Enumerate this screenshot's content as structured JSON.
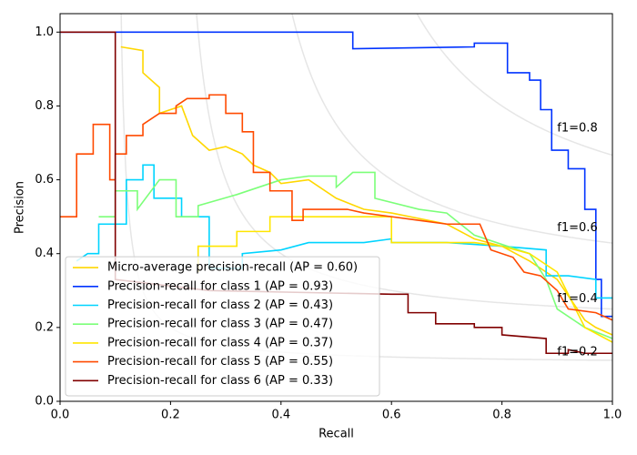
{
  "chart_data": {
    "type": "line",
    "x_label": "Recall",
    "y_label": "Precision",
    "xlim": [
      0,
      1
    ],
    "ylim": [
      0,
      1.05
    ],
    "xticks": [
      {
        "value": 0,
        "label": "0.0"
      },
      {
        "value": 0.2,
        "label": "0.2"
      },
      {
        "value": 0.4,
        "label": "0.4"
      },
      {
        "value": 0.6,
        "label": "0.6"
      },
      {
        "value": 0.8,
        "label": "0.8"
      },
      {
        "value": 1,
        "label": "1.0"
      }
    ],
    "yticks": [
      {
        "value": 0,
        "label": "0.0"
      },
      {
        "value": 0.2,
        "label": "0.2"
      },
      {
        "value": 0.4,
        "label": "0.4"
      },
      {
        "value": 0.6,
        "label": "0.6"
      },
      {
        "value": 0.8,
        "label": "0.8"
      },
      {
        "value": 1,
        "label": "1.0"
      }
    ],
    "legend": "lower left",
    "iso_f1": [
      {
        "value": 0.2,
        "label": "f1=0.2"
      },
      {
        "value": 0.4,
        "label": "f1=0.4"
      },
      {
        "value": 0.6,
        "label": "f1=0.6"
      },
      {
        "value": 0.8,
        "label": "f1=0.8"
      }
    ],
    "series": [
      {
        "name": "Micro-average precision-recall (AP = 0.60)",
        "color": "#ffd700",
        "x": [
          0.11,
          0.15,
          0.15,
          0.18,
          0.18,
          0.22,
          0.24,
          0.27,
          0.3,
          0.33,
          0.35,
          0.38,
          0.4,
          0.45,
          0.5,
          0.55,
          0.6,
          0.7,
          0.75,
          0.8,
          0.85,
          0.9,
          0.95,
          0.97,
          1
        ],
        "values": [
          0.96,
          0.95,
          0.89,
          0.85,
          0.78,
          0.8,
          0.72,
          0.68,
          0.69,
          0.67,
          0.64,
          0.62,
          0.59,
          0.6,
          0.55,
          0.52,
          0.51,
          0.48,
          0.44,
          0.42,
          0.38,
          0.33,
          0.22,
          0.2,
          0.18
        ]
      },
      {
        "name": "Precision-recall for class 1 (AP = 0.93)",
        "color": "#0033ff",
        "x": [
          0,
          0.53,
          0.53,
          0.75,
          0.75,
          0.81,
          0.81,
          0.85,
          0.85,
          0.87,
          0.87,
          0.89,
          0.89,
          0.92,
          0.92,
          0.95,
          0.95,
          0.97,
          0.97,
          0.98,
          0.98,
          1
        ],
        "values": [
          1,
          1,
          0.955,
          0.96,
          0.97,
          0.97,
          0.89,
          0.89,
          0.87,
          0.87,
          0.79,
          0.79,
          0.68,
          0.68,
          0.63,
          0.63,
          0.52,
          0.52,
          0.33,
          0.33,
          0.23,
          0.23
        ]
      },
      {
        "name": "Precision-recall for class 2 (AP = 0.43)",
        "color": "#00d4ff",
        "x": [
          0.03,
          0.05,
          0.07,
          0.07,
          0.12,
          0.12,
          0.15,
          0.15,
          0.17,
          0.17,
          0.22,
          0.22,
          0.27,
          0.27,
          0.33,
          0.33,
          0.4,
          0.45,
          0.55,
          0.6,
          0.6,
          0.7,
          0.8,
          0.88,
          0.88,
          0.92,
          0.97,
          0.97,
          1
        ],
        "values": [
          0.38,
          0.4,
          0.4,
          0.48,
          0.48,
          0.6,
          0.6,
          0.64,
          0.64,
          0.55,
          0.55,
          0.5,
          0.5,
          0.36,
          0.36,
          0.4,
          0.41,
          0.43,
          0.43,
          0.44,
          0.43,
          0.43,
          0.42,
          0.41,
          0.34,
          0.34,
          0.33,
          0.28,
          0.28
        ]
      },
      {
        "name": "Precision-recall for class 3 (AP = 0.47)",
        "color": "#7cff79",
        "x": [
          0.07,
          0.1,
          0.1,
          0.14,
          0.14,
          0.18,
          0.21,
          0.21,
          0.25,
          0.25,
          0.32,
          0.36,
          0.4,
          0.45,
          0.5,
          0.5,
          0.53,
          0.57,
          0.57,
          0.65,
          0.7,
          0.75,
          0.85,
          0.88,
          0.9,
          0.95,
          1
        ],
        "values": [
          0.5,
          0.5,
          0.57,
          0.57,
          0.52,
          0.6,
          0.6,
          0.5,
          0.5,
          0.53,
          0.56,
          0.58,
          0.6,
          0.61,
          0.61,
          0.58,
          0.62,
          0.62,
          0.55,
          0.52,
          0.51,
          0.45,
          0.4,
          0.33,
          0.25,
          0.2,
          0.17
        ]
      },
      {
        "name": "Precision-recall for class 4 (AP = 0.37)",
        "color": "#ffe600",
        "x": [
          0.25,
          0.25,
          0.32,
          0.32,
          0.38,
          0.38,
          0.6,
          0.6,
          0.75,
          0.8,
          0.85,
          0.9,
          0.95,
          1
        ],
        "values": [
          0.35,
          0.42,
          0.42,
          0.46,
          0.46,
          0.5,
          0.5,
          0.43,
          0.43,
          0.42,
          0.4,
          0.35,
          0.2,
          0.16
        ]
      },
      {
        "name": "Precision-recall for class 5 (AP = 0.55)",
        "color": "#ff4a00",
        "x": [
          0,
          0.03,
          0.03,
          0.06,
          0.06,
          0.09,
          0.09,
          0.1,
          0.1,
          0.12,
          0.12,
          0.15,
          0.15,
          0.18,
          0.21,
          0.21,
          0.23,
          0.27,
          0.27,
          0.3,
          0.3,
          0.33,
          0.33,
          0.35,
          0.35,
          0.38,
          0.38,
          0.42,
          0.42,
          0.44,
          0.44,
          0.52,
          0.55,
          0.6,
          0.65,
          0.7,
          0.76,
          0.78,
          0.82,
          0.84,
          0.87,
          0.9,
          0.92,
          0.97,
          1
        ],
        "values": [
          0.5,
          0.5,
          0.67,
          0.67,
          0.75,
          0.75,
          0.6,
          0.6,
          0.67,
          0.67,
          0.72,
          0.72,
          0.75,
          0.78,
          0.78,
          0.8,
          0.82,
          0.82,
          0.83,
          0.83,
          0.78,
          0.78,
          0.73,
          0.73,
          0.62,
          0.62,
          0.57,
          0.57,
          0.49,
          0.49,
          0.52,
          0.52,
          0.51,
          0.5,
          0.49,
          0.48,
          0.48,
          0.41,
          0.39,
          0.35,
          0.34,
          0.3,
          0.25,
          0.24,
          0.22
        ]
      },
      {
        "name": "Precision-recall for class 6 (AP = 0.33)",
        "color": "#800000",
        "x": [
          0,
          0.1,
          0.1,
          0.27,
          0.6,
          0.63,
          0.63,
          0.68,
          0.68,
          0.75,
          0.75,
          0.8,
          0.8,
          0.88,
          0.88,
          0.92,
          0.92,
          0.95,
          1
        ],
        "values": [
          1,
          1,
          0.33,
          0.3,
          0.29,
          0.29,
          0.24,
          0.24,
          0.21,
          0.21,
          0.2,
          0.2,
          0.18,
          0.17,
          0.13,
          0.13,
          0.14,
          0.13,
          0.13
        ]
      }
    ]
  }
}
